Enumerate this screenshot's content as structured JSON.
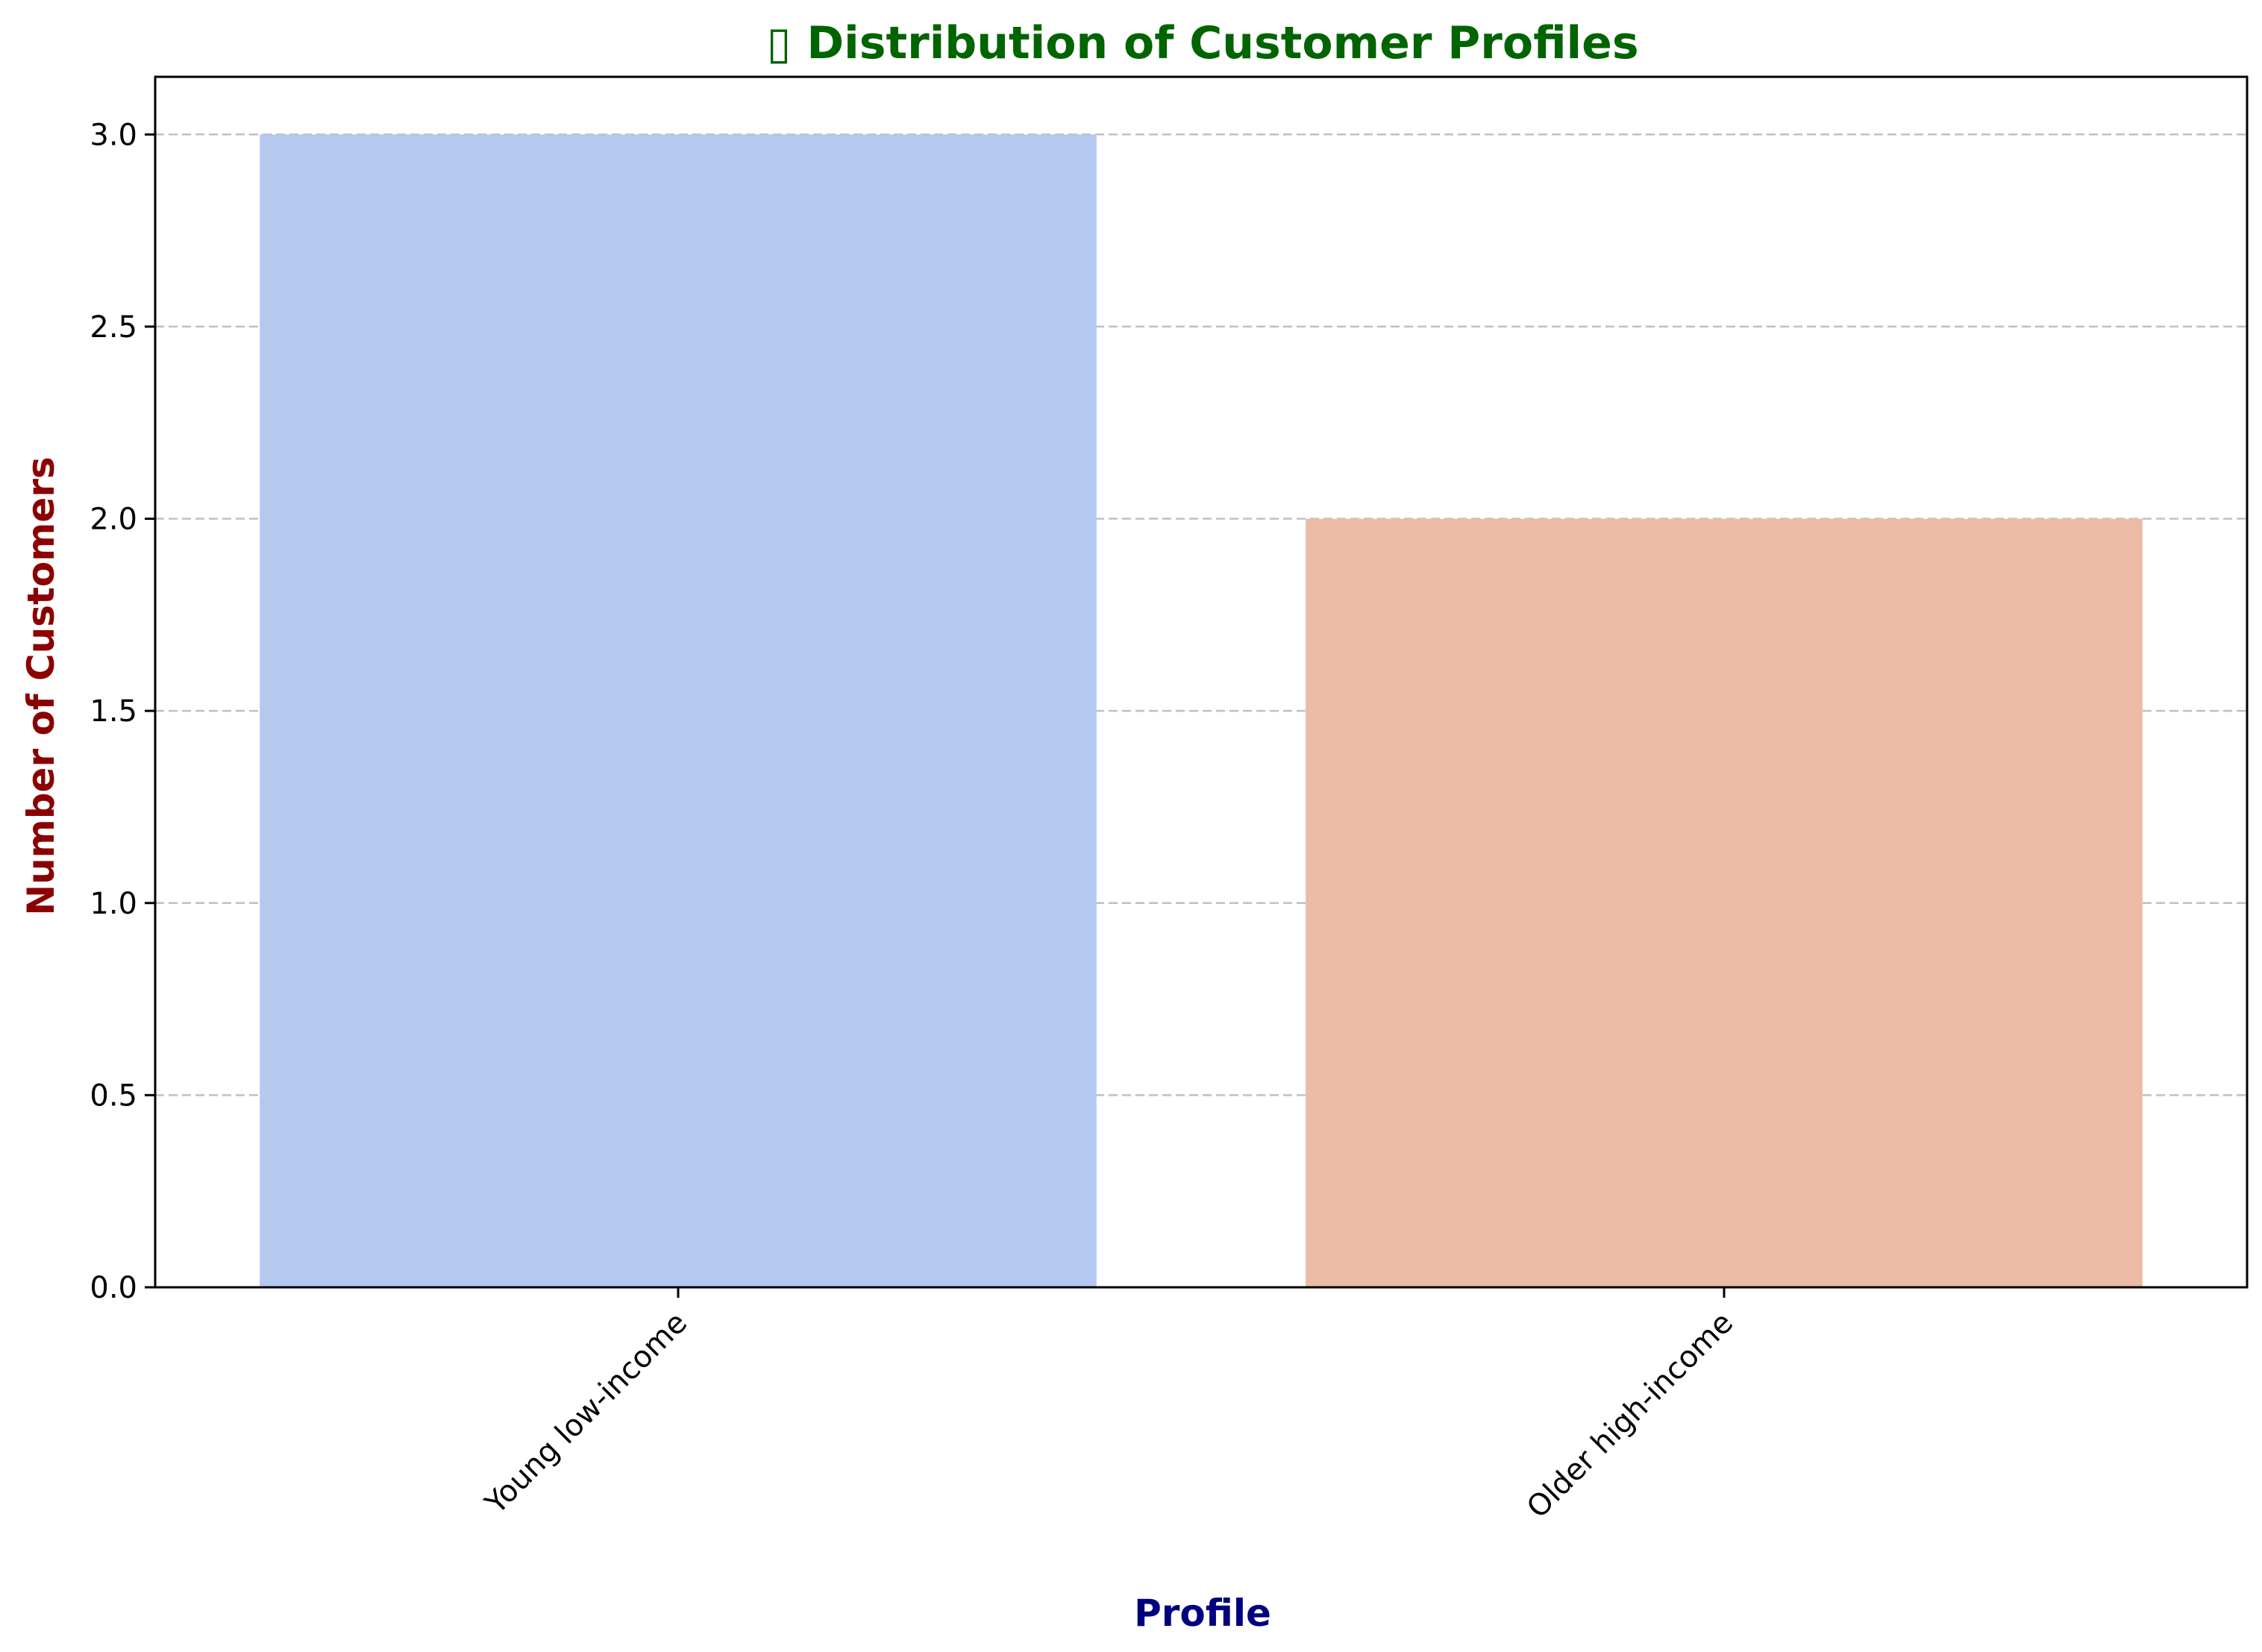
{
  "chart_data": {
    "type": "bar",
    "title": "▯ Distribution of Customer Profiles",
    "xlabel": "Profile",
    "ylabel": "Number of Customers",
    "categories": [
      "Young low-income",
      "Older high-income"
    ],
    "values": [
      3,
      2
    ],
    "ylim": [
      0,
      3.15
    ],
    "yticks": [
      "0.0",
      "0.5",
      "1.0",
      "1.5",
      "2.0",
      "2.5",
      "3.0"
    ],
    "grid": "horizontal-dashed",
    "bar_colors": [
      "#b4c8f0",
      "#ebbba5"
    ],
    "title_color": "#006400",
    "xlabel_color": "#000080",
    "ylabel_color": "#8b0000",
    "grid_color": "#c0c0c0"
  }
}
